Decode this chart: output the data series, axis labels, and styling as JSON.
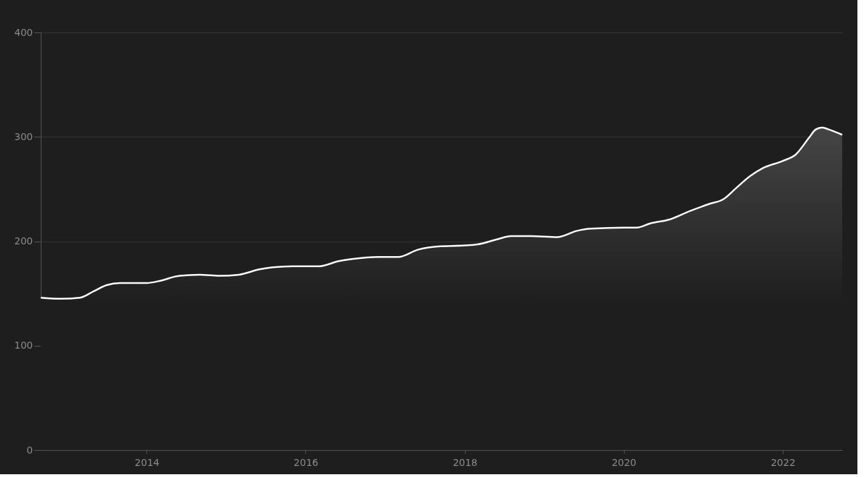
{
  "chart_data": {
    "type": "area",
    "color": "#ffffff",
    "x": [
      "2012-09",
      "2012-12",
      "2013-03",
      "2013-05",
      "2013-07",
      "2013-09",
      "2014-01",
      "2014-03",
      "2014-06",
      "2014-09",
      "2014-12",
      "2015-03",
      "2015-06",
      "2015-08",
      "2015-11",
      "2016-03",
      "2016-06",
      "2016-08",
      "2016-12",
      "2017-03",
      "2017-06",
      "2017-09",
      "2018-01",
      "2018-03",
      "2018-06",
      "2018-08",
      "2018-11",
      "2019-03",
      "2019-06",
      "2019-08",
      "2020-01",
      "2020-03",
      "2020-05",
      "2020-08",
      "2020-11",
      "2021-02",
      "2021-04",
      "2021-06",
      "2021-08",
      "2021-10",
      "2022-01",
      "2022-03",
      "2022-05",
      "2022-06",
      "2022-07",
      "2022-08",
      "2022-10"
    ],
    "values": [
      146,
      145,
      146,
      152,
      158,
      160,
      160,
      162,
      167,
      168,
      167,
      168,
      173,
      175,
      176,
      176,
      181,
      183,
      185,
      185,
      192,
      195,
      196,
      197,
      202,
      205,
      205,
      204,
      210,
      212,
      213,
      213,
      217,
      221,
      229,
      236,
      240,
      251,
      262,
      270,
      277,
      283,
      299,
      307,
      309,
      307,
      302
    ],
    "xlim": [
      "2012-09",
      "2022-10"
    ],
    "xticks": [
      "2014",
      "2016",
      "2018",
      "2020",
      "2022"
    ],
    "ylim": [
      0,
      400
    ],
    "yticks": [
      0,
      100,
      200,
      300,
      400
    ],
    "grid": "y"
  }
}
